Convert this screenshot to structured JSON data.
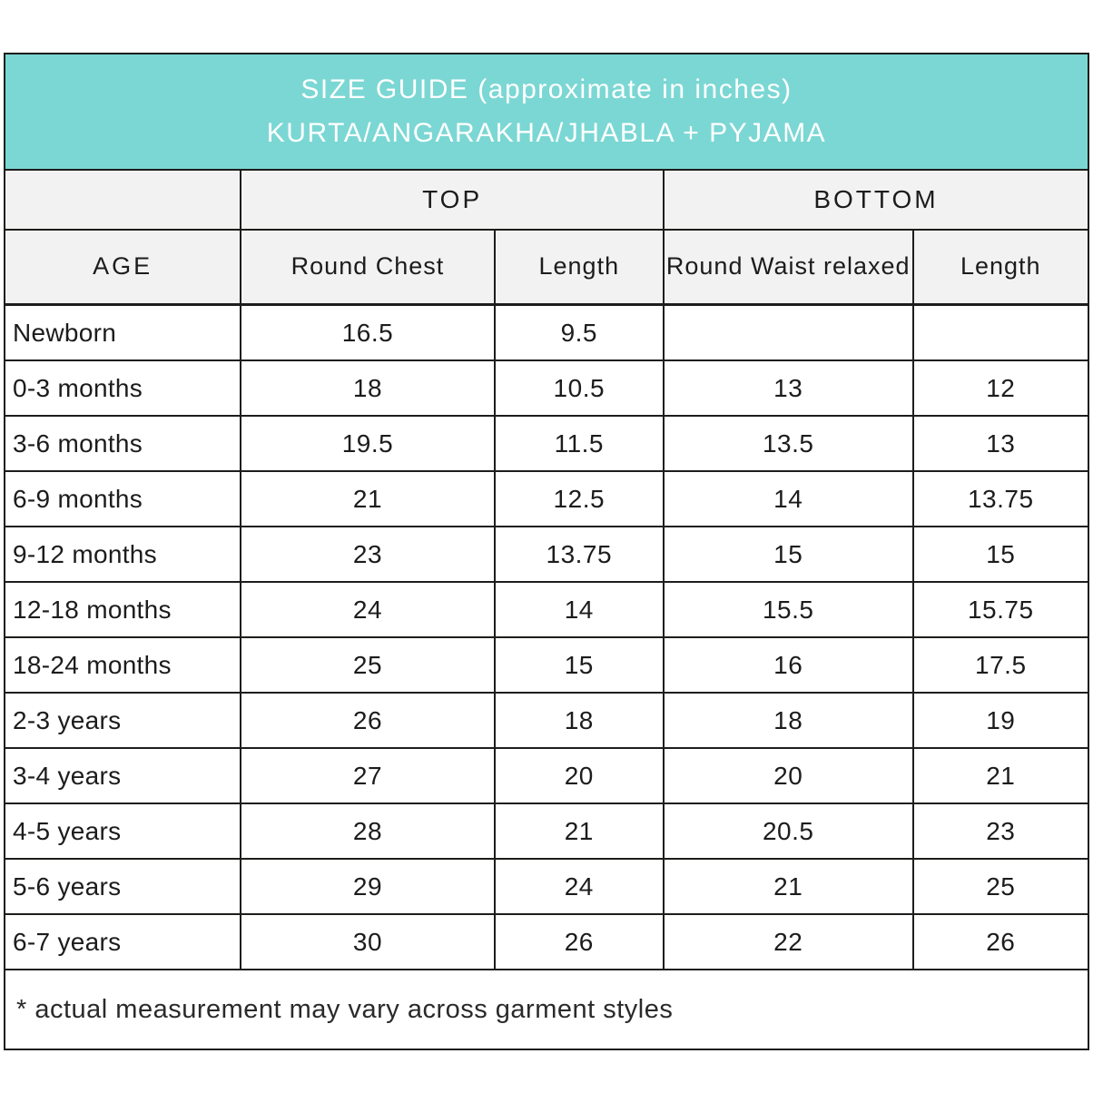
{
  "header": {
    "title_line1": "SIZE GUIDE (approximate in inches)",
    "title_line2": "KURTA/ANGARAKHA/JHABLA + PYJAMA"
  },
  "table": {
    "group_headers": {
      "top": "TOP",
      "bottom": "BOTTOM"
    },
    "columns": [
      "AGE",
      "Round Chest",
      "Length",
      "Round Waist relaxed",
      "Length"
    ],
    "rows": [
      {
        "age": "Newborn",
        "round_chest": "16.5",
        "top_length": "9.5",
        "round_waist": "",
        "bottom_length": ""
      },
      {
        "age": "0-3 months",
        "round_chest": "18",
        "top_length": "10.5",
        "round_waist": "13",
        "bottom_length": "12"
      },
      {
        "age": "3-6 months",
        "round_chest": "19.5",
        "top_length": "11.5",
        "round_waist": "13.5",
        "bottom_length": "13"
      },
      {
        "age": "6-9 months",
        "round_chest": "21",
        "top_length": "12.5",
        "round_waist": "14",
        "bottom_length": "13.75"
      },
      {
        "age": "9-12 months",
        "round_chest": "23",
        "top_length": "13.75",
        "round_waist": "15",
        "bottom_length": "15"
      },
      {
        "age": "12-18 months",
        "round_chest": "24",
        "top_length": "14",
        "round_waist": "15.5",
        "bottom_length": "15.75"
      },
      {
        "age": "18-24 months",
        "round_chest": "25",
        "top_length": "15",
        "round_waist": "16",
        "bottom_length": "17.5"
      },
      {
        "age": "2-3 years",
        "round_chest": "26",
        "top_length": "18",
        "round_waist": "18",
        "bottom_length": "19"
      },
      {
        "age": "3-4 years",
        "round_chest": "27",
        "top_length": "20",
        "round_waist": "20",
        "bottom_length": "21"
      },
      {
        "age": "4-5 years",
        "round_chest": "28",
        "top_length": "21",
        "round_waist": "20.5",
        "bottom_length": "23"
      },
      {
        "age": "5-6 years",
        "round_chest": "29",
        "top_length": "24",
        "round_waist": "21",
        "bottom_length": "25"
      },
      {
        "age": "6-7 years",
        "round_chest": "30",
        "top_length": "26",
        "round_waist": "22",
        "bottom_length": "26"
      }
    ],
    "footnote": "* actual measurement may vary across garment styles"
  },
  "colors": {
    "accent_teal": "#7bd7d4",
    "header_gray": "#f2f2f2",
    "border": "#1d1d1b",
    "text": "#1c1c1c"
  }
}
